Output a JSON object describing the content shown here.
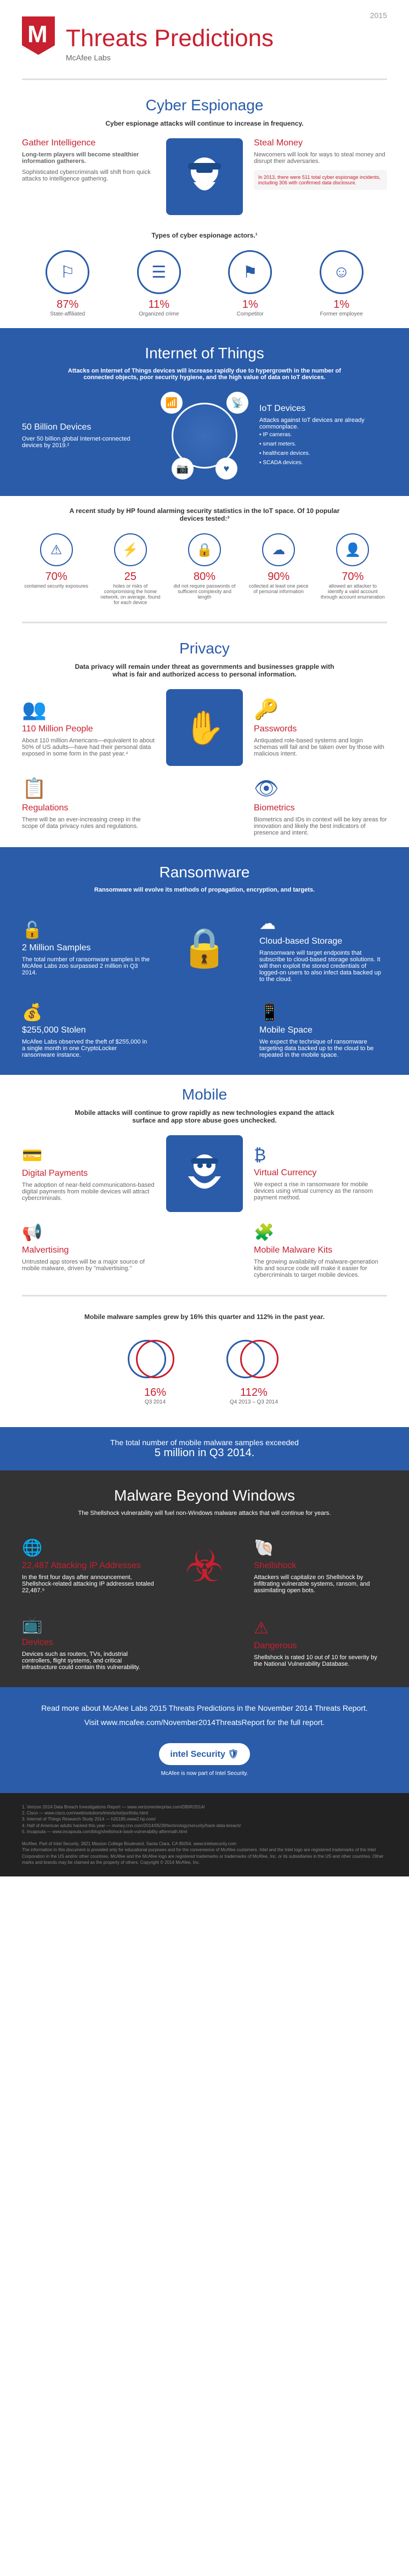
{
  "meta": {
    "year": "2015",
    "title": "Threats Predictions",
    "subtitle": "McAfee Labs"
  },
  "espionage": {
    "title": "Cyber Espionage",
    "sub": "Cyber espionage attacks will continue to increase in frequency.",
    "gather": {
      "title": "Gather Intelligence",
      "p1": "Long-term players will become stealthier information gatherers.",
      "p2": "Sophisticated cybercriminals will shift from quick attacks to intelligence gathering."
    },
    "steal": {
      "title": "Steal Money",
      "p1": "Newcomers will look for ways to steal money and disrupt their adversaries.",
      "note": "In 2013, there were 511 total cyber espionage incidents, including 306 with confirmed data disclosure."
    },
    "actors_title": "Types of cyber espionage actors.¹",
    "actors": [
      {
        "pct": "87%",
        "label": "State-affiliated",
        "icon": "⚐"
      },
      {
        "pct": "11%",
        "label": "Organized crime",
        "icon": "☰"
      },
      {
        "pct": "1%",
        "label": "Competitor",
        "icon": "⚑"
      },
      {
        "pct": "1%",
        "label": "Former employee",
        "icon": "☺"
      }
    ]
  },
  "iot": {
    "title": "Internet of Things",
    "sub": "Attacks on Internet of Things devices will increase rapidly due to hypergrowth in the number of connected objects, poor security hygiene, and the high value of data on IoT devices.",
    "devices": {
      "title": "50 Billion Devices",
      "p": "Over 50 billion global Internet-connected devices by 2019.²"
    },
    "iotdev": {
      "title": "IoT Devices",
      "p": "Attacks against IoT devices are already commonplace.",
      "items": [
        "IP cameras.",
        "smart meters.",
        "healthcare devices.",
        "SCADA devices."
      ]
    },
    "study": "A recent study by HP found alarming security statistics in the IoT space. Of 10 popular devices tested:³",
    "stats": [
      {
        "val": "70%",
        "txt": "contained security exposures",
        "icon": "⚠"
      },
      {
        "val": "25",
        "txt": "holes or risks of compromising the home network, on average, found for each device",
        "icon": "⚡"
      },
      {
        "val": "80%",
        "txt": "did not require passwords of sufficient complexity and length",
        "icon": "🔒"
      },
      {
        "val": "90%",
        "txt": "collected at least one piece of personal information",
        "icon": "☁"
      },
      {
        "val": "70%",
        "txt": "allowed an attacker to identify a valid account through account enumeration",
        "icon": "👤"
      }
    ]
  },
  "privacy": {
    "title": "Privacy",
    "sub": "Data privacy will remain under threat as governments and businesses grapple with what is fair and authorized access to personal information.",
    "items": [
      {
        "title": "110 Million People",
        "desc": "About 110 million Americans—equivalent to about 50% of US adults—have had their personal data exposed in some form in the past year.⁴",
        "icon": "👥"
      },
      {
        "title": "Passwords",
        "desc": "Antiquated role-based systems and login schemas will fail and be taken over by those with malicious intent.",
        "icon": "🔑"
      },
      {
        "title": "Regulations",
        "desc": "There will be an ever-increasing creep in the scope of data privacy rules and regulations.",
        "icon": "📋"
      },
      {
        "title": "Biometrics",
        "desc": "Biometrics and IDs in context will be key areas for innovation and likely the best indicators of presence and intent.",
        "icon": "👁"
      }
    ]
  },
  "ransom": {
    "title": "Ransomware",
    "sub": "Ransomware will evolve its methods of propagation, encryption, and targets.",
    "items": [
      {
        "title": "2 Million Samples",
        "desc": "The total number of ransomware samples in the McAfee Labs zoo surpassed 2 million in Q3 2014.",
        "icon": "🔓"
      },
      {
        "title": "Cloud-based Storage",
        "desc": "Ransomware will target endpoints that subscribe to cloud-based storage solutions. It will then exploit the stored credentials of logged-on users to also infect data backed up to the cloud.",
        "icon": "☁"
      },
      {
        "title": "$255,000 Stolen",
        "desc": "McAfee Labs observed the theft of $255,000 in a single month in one CryptoLocker ransomware instance.",
        "icon": "💰"
      },
      {
        "title": "Mobile Space",
        "desc": "We expect the technique of ransomware targeting data backed up to the cloud to be repeated in the mobile space.",
        "icon": "📱"
      }
    ]
  },
  "mobile": {
    "title": "Mobile",
    "sub": "Mobile attacks will continue to grow rapidly as new technologies expand the attack surface and app store abuse goes unchecked.",
    "items": [
      {
        "title": "Digital Payments",
        "desc": "The adoption of near-field communications-based digital payments from mobile devices will attract cybercriminals.",
        "icon": "💳"
      },
      {
        "title": "Virtual Currency",
        "desc": "We expect a rise in ransomware for mobile devices using virtual currency as the ransom payment method.",
        "icon": "₿"
      },
      {
        "title": "Malvertising",
        "desc": "Untrusted app stores will be a major source of mobile malware, driven by \"malvertising.\"",
        "icon": "📢"
      },
      {
        "title": "Mobile Malware Kits",
        "desc": "The growing availability of malware-generation kits and source code will make it easier for cybercriminals to target mobile devices.",
        "icon": "🧩"
      }
    ],
    "growth_title": "Mobile malware samples grew by 16% this quarter and 112% in the past year.",
    "growth": [
      {
        "val": "16%",
        "label": "Q3 2014"
      },
      {
        "val": "112%",
        "label": "Q4 2013 – Q3 2014"
      }
    ],
    "total": "The total number of mobile malware samples exceeded",
    "total_num": "5 million in Q3 2014."
  },
  "malware": {
    "title": "Malware Beyond Windows",
    "sub": "The Shellshock vulnerability will fuel non-Windows malware attacks that will continue for years.",
    "items": [
      {
        "title": "22,487 Attacking IP Addresses",
        "desc": "In the first four days after announcement, Shellshock-related attacking IP addresses totaled 22,487.⁵",
        "icon": "🌐"
      },
      {
        "title": "Shellshock",
        "desc": "Attackers will capitalize on Shellshock by infiltrating vulnerable systems, ransom, and assimilating open bots.",
        "icon": "🐚"
      },
      {
        "title": "Devices",
        "desc": "Devices such as routers, TVs, industrial controllers, flight systems, and critical infrastructure could contain this vulnerability.",
        "icon": "📺"
      },
      {
        "title": "Dangerous",
        "desc": "Shellshock is rated 10 out of 10 for severity by the National Vulnerability Database.",
        "icon": "⚠"
      }
    ]
  },
  "footer": {
    "line1": "Read more about McAfee Labs 2015 Threats Predictions in the November 2014 Threats Report.",
    "line2": "Visit www.mcafee.com/November2014ThreatsReport for the full report.",
    "brand": "intel Security 🛡",
    "tagline": "McAfee is now part of Intel Security."
  },
  "fineprint": "1. Verizon 2014 Data Breach Investigations Report — www.verizonenterprise.com/DBIR/2014/\n2. Cisco — www.cisco.com/web/solutions/trends/iot/portfolio.html\n3. Internet of Things Research Study 2014 — h20195.www2.hp.com/\n4. Half of American adults hacked this year — money.cnn.com/2014/05/28/technology/security/hack-data-breach/\n5. Incapsula — www.incapsula.com/blog/shellshock-bash-vulnerability-aftermath.html\n\nMcAfee. Part of Intel Security. 2821 Mission College Boulevard, Santa Clara, CA 95054. www.intelsecurity.com\nThe information in this document is provided only for educational purposes and for the convenience of McAfee customers. Intel and the Intel logo are registered trademarks of the Intel Corporation in the US and/or other countries. McAfee and the McAfee logo are registered trademarks or trademarks of McAfee, Inc. or its subsidiaries in the US and other countries. Other marks and brands may be claimed as the property of others. Copyright © 2014 McAfee, Inc."
}
